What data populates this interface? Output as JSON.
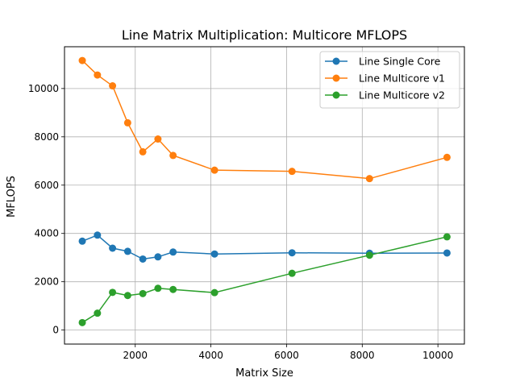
{
  "chart_data": {
    "type": "line",
    "title": "Line Matrix Multiplication: Multicore MFLOPS",
    "xlabel": "Matrix Size",
    "ylabel": "MFLOPS",
    "xlim": [
      130,
      10700
    ],
    "ylim": [
      -580,
      11730
    ],
    "xticks": [
      2000,
      4000,
      6000,
      8000,
      10000
    ],
    "yticks": [
      0,
      2000,
      4000,
      6000,
      8000,
      10000
    ],
    "grid": true,
    "legend_position": "top-right",
    "x": [
      600,
      1000,
      1400,
      1800,
      2200,
      2600,
      3000,
      4096,
      6144,
      8192,
      10240
    ],
    "series": [
      {
        "name": "Line Single Core",
        "color": "#1f77b4",
        "values": [
          3680,
          3930,
          3390,
          3260,
          2940,
          3030,
          3230,
          3150,
          3200,
          3180,
          3190
        ]
      },
      {
        "name": "Line Multicore v1",
        "color": "#ff7f0e",
        "values": [
          11160,
          10560,
          10110,
          8580,
          7380,
          7910,
          7230,
          6620,
          6570,
          6270,
          7150
        ]
      },
      {
        "name": "Line Multicore v2",
        "color": "#2ca02c",
        "values": [
          310,
          700,
          1560,
          1430,
          1510,
          1730,
          1680,
          1550,
          2350,
          3100,
          3860
        ]
      }
    ]
  }
}
